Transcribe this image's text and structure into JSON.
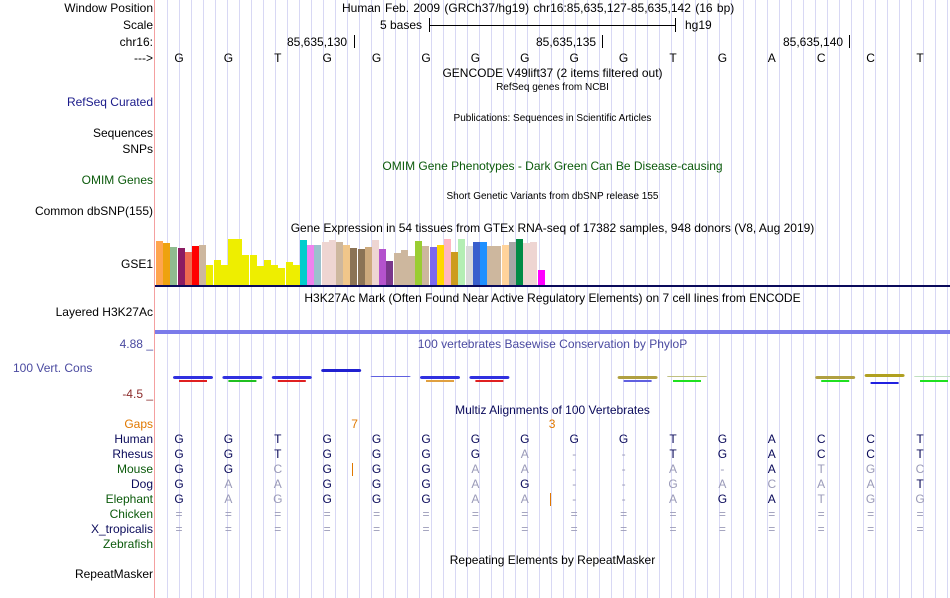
{
  "header": {
    "window_position_label": "Window Position",
    "window_position_value": "Human Feb. 2009 (GRCh37/hg19)   chr16:85,635,127-85,635,142 (16 bp)",
    "scale_label": "Scale",
    "scale_text": "5 bases",
    "scale_assembly": "hg19",
    "chrom_label": "chr16:",
    "coord_ticks": [
      "85,635,130",
      "85,635,135",
      "85,635,140"
    ],
    "strand_label": "--->",
    "bases": [
      "G",
      "G",
      "T",
      "G",
      "G",
      "G",
      "G",
      "G",
      "G",
      "G",
      "T",
      "G",
      "A",
      "C",
      "C",
      "T"
    ]
  },
  "tracks": {
    "gencode_title": "GENCODE V49lift37 (2 items filtered out)",
    "refseq_label": "RefSeq Curated",
    "refseq_title": "RefSeq genes from NCBI",
    "publications_title": "Publications: Sequences in Scientific Articles",
    "sequences_label": "Sequences",
    "snps_label": "SNPs",
    "omim_title": "OMIM Gene Phenotypes - Dark Green Can Be Disease-causing",
    "omim_label": "OMIM Genes",
    "dbsnp_title": "Short Genetic Variants from dbSNP release 155",
    "dbsnp_label": "Common dbSNP(155)",
    "gtex_title": "Gene Expression in 54 tissues from GTEx RNA-seq of 17382 samples, 948 donors (V8, Aug 2019)",
    "gtex_label": "GSE1",
    "h3k27ac_title": "H3K27Ac Mark (Often Found Near Active Regulatory Elements) on 7 cell lines from ENCODE",
    "h3k27ac_label": "Layered H3K27Ac",
    "phylop_max": "4.88 _",
    "phylop_label": "100 Vert. Cons",
    "phylop_min": "-4.5 _",
    "phylop_title": "100 vertebrates Basewise Conservation by PhyloP",
    "multiz_title": "Multiz Alignments of 100 Vertebrates",
    "repeatmasker_title": "Repeating Elements by RepeatMasker",
    "repeatmasker_label": "RepeatMasker"
  },
  "gtex": {
    "bars": [
      {
        "level": 0.95,
        "color": "#ffa54f"
      },
      {
        "level": 0.91,
        "color": "#eea20f"
      },
      {
        "level": 0.82,
        "color": "#8fbc8f"
      },
      {
        "level": 0.8,
        "color": "#8b1c62"
      },
      {
        "level": 0.72,
        "color": "#ee6a50"
      },
      {
        "level": 0.84,
        "color": "#ff0000"
      },
      {
        "level": 0.87,
        "color": "#cdb79e"
      },
      {
        "level": 0.43,
        "color": "#eeee00"
      },
      {
        "level": 0.55,
        "color": "#eeee00"
      },
      {
        "level": 0.43,
        "color": "#eeee00"
      },
      {
        "level": 1.0,
        "color": "#eeee00"
      },
      {
        "level": 1.0,
        "color": "#eeee00"
      },
      {
        "level": 0.65,
        "color": "#eeee00"
      },
      {
        "level": 0.65,
        "color": "#eeee00"
      },
      {
        "level": 0.41,
        "color": "#eeee00"
      },
      {
        "level": 0.55,
        "color": "#eeee00"
      },
      {
        "level": 0.43,
        "color": "#eeee00"
      },
      {
        "level": 0.37,
        "color": "#eeee00"
      },
      {
        "level": 0.51,
        "color": "#eeee00"
      },
      {
        "level": 0.43,
        "color": "#eeee00"
      },
      {
        "level": 0.98,
        "color": "#00cdcd"
      },
      {
        "level": 0.87,
        "color": "#ee82ee"
      },
      {
        "level": 0.87,
        "color": "#9ac0cd"
      },
      {
        "level": 0.93,
        "color": "#eed5d2"
      },
      {
        "level": 0.98,
        "color": "#eed5d2"
      },
      {
        "level": 0.93,
        "color": "#cdb79e"
      },
      {
        "level": 0.87,
        "color": "#f0c68a"
      },
      {
        "level": 0.8,
        "color": "#8b7355"
      },
      {
        "level": 0.78,
        "color": "#8b7355"
      },
      {
        "level": 0.82,
        "color": "#cdaa7d"
      },
      {
        "level": 0.98,
        "color": "#eed5d2"
      },
      {
        "level": 0.78,
        "color": "#b452cd"
      },
      {
        "level": 0.52,
        "color": "#7a378b"
      },
      {
        "level": 0.7,
        "color": "#cdb79e"
      },
      {
        "level": 0.75,
        "color": "#cdb79e"
      },
      {
        "level": 0.64,
        "color": "#cdb79e"
      },
      {
        "level": 0.96,
        "color": "#9acd32"
      },
      {
        "level": 0.85,
        "color": "#cdb79e"
      },
      {
        "level": 0.82,
        "color": "#7b68ee"
      },
      {
        "level": 0.86,
        "color": "#ffd700"
      },
      {
        "level": 1.0,
        "color": "#ffb6c1"
      },
      {
        "level": 0.71,
        "color": "#cd9b1d"
      },
      {
        "level": 1.0,
        "color": "#b4eeb4"
      },
      {
        "level": 0.85,
        "color": "#d9d9d9"
      },
      {
        "level": 0.94,
        "color": "#3a5fcd"
      },
      {
        "level": 0.94,
        "color": "#1e90ff"
      },
      {
        "level": 0.85,
        "color": "#cdb79e"
      },
      {
        "level": 0.84,
        "color": "#cdb79e"
      },
      {
        "level": 0.88,
        "color": "#ffd39b"
      },
      {
        "level": 0.93,
        "color": "#a6a6a6"
      },
      {
        "level": 1.0,
        "color": "#008b45"
      },
      {
        "level": 0.91,
        "color": "#eed5d2"
      },
      {
        "level": 0.93,
        "color": "#eed5d2"
      },
      {
        "level": 0.33,
        "color": "#ff00ff"
      }
    ]
  },
  "multiz": {
    "gaps_label": "Gaps",
    "gap_counts": [
      {
        "after_base": 4,
        "value": "7"
      },
      {
        "after_base": 8,
        "value": "3"
      }
    ],
    "species": [
      {
        "name": "Human",
        "color": "navy",
        "seq": [
          "G",
          "G",
          "T",
          "G",
          "G",
          "G",
          "G",
          "G",
          "G",
          "G",
          "T",
          "G",
          "A",
          "C",
          "C",
          "T"
        ],
        "match": [
          1,
          1,
          1,
          1,
          1,
          1,
          1,
          1,
          1,
          1,
          1,
          1,
          1,
          1,
          1,
          1
        ]
      },
      {
        "name": "Rhesus",
        "color": "navy",
        "seq": [
          "G",
          "G",
          "T",
          "G",
          "G",
          "G",
          "G",
          "A",
          "-",
          "-",
          "T",
          "G",
          "A",
          "C",
          "C",
          "T"
        ],
        "match": [
          1,
          1,
          1,
          1,
          1,
          1,
          1,
          0,
          0,
          0,
          1,
          1,
          1,
          1,
          1,
          1
        ]
      },
      {
        "name": "Mouse",
        "color": "green",
        "seq": [
          "G",
          "G",
          "C",
          "G",
          "G",
          "G",
          "A",
          "A",
          "-",
          "-",
          "A",
          "-",
          "A",
          "T",
          "G",
          "C"
        ],
        "match": [
          1,
          1,
          0,
          1,
          1,
          1,
          0,
          0,
          0,
          0,
          0,
          0,
          1,
          0,
          0,
          0
        ]
      },
      {
        "name": "Dog",
        "color": "navy",
        "seq": [
          "G",
          "A",
          "A",
          "G",
          "G",
          "G",
          "A",
          "G",
          "-",
          "-",
          "G",
          "A",
          "C",
          "A",
          "A",
          "T"
        ],
        "match": [
          1,
          0,
          0,
          1,
          1,
          1,
          0,
          1,
          0,
          0,
          0,
          0,
          0,
          0,
          0,
          1
        ]
      },
      {
        "name": "Elephant",
        "color": "green",
        "seq": [
          "G",
          "A",
          "G",
          "G",
          "G",
          "G",
          "A",
          "A",
          "-",
          "-",
          "A",
          "G",
          "A",
          "T",
          "G",
          "G"
        ],
        "match": [
          1,
          0,
          0,
          1,
          1,
          1,
          0,
          0,
          0,
          0,
          0,
          1,
          1,
          0,
          0,
          0
        ]
      },
      {
        "name": "Chicken",
        "color": "green",
        "seq": [
          "=",
          "=",
          "=",
          "=",
          "=",
          "=",
          "=",
          "=",
          "=",
          "=",
          "=",
          "=",
          "=",
          "=",
          "=",
          "="
        ]
      },
      {
        "name": "X_tropicalis",
        "color": "navy",
        "seq": [
          "=",
          "=",
          "=",
          "=",
          "=",
          "=",
          "=",
          "=",
          "=",
          "=",
          "=",
          "=",
          "=",
          "=",
          "=",
          "="
        ]
      },
      {
        "name": "Zebrafish",
        "color": "green",
        "seq": []
      }
    ],
    "insertion_marks": [
      {
        "species": "Mouse",
        "after_base": 4
      },
      {
        "species": "Elephant",
        "after_base": 8
      }
    ]
  },
  "colors": {
    "navy": "#0a0a5a",
    "green": "#0b5a0b",
    "track_label_blue": "#1a1a8a",
    "gaps_orange": "#e07800",
    "phylop_blue": "#4a4aa0",
    "phylop_min_red": "#8b2b2b",
    "grid_line": "#d8d8f4",
    "margin_line": "#f4a0a0"
  }
}
